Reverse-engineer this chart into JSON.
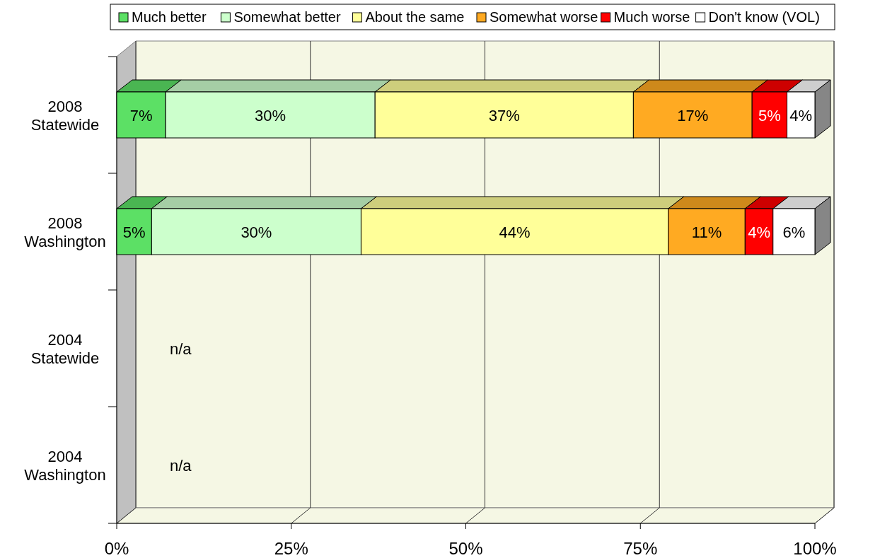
{
  "chart_data": {
    "type": "bar",
    "orientation": "horizontal",
    "stacked": true,
    "categories": [
      "2008 Statewide",
      "2008 Washington",
      "2004 Statewide",
      "2004 Washington"
    ],
    "series": [
      {
        "name": "Much better",
        "color": "#5ce065",
        "values": [
          7,
          5,
          null,
          null
        ]
      },
      {
        "name": "Somewhat better",
        "color": "#ccffcc",
        "values": [
          30,
          30,
          null,
          null
        ]
      },
      {
        "name": "About the same",
        "color": "#ffff99",
        "values": [
          37,
          44,
          null,
          null
        ]
      },
      {
        "name": "Somewhat worse",
        "color": "#ffaa22",
        "values": [
          17,
          11,
          null,
          null
        ]
      },
      {
        "name": "Much worse",
        "color": "#ff0000",
        "values": [
          5,
          4,
          null,
          null
        ]
      },
      {
        "name": "Don't know (VOL)",
        "color": "#ffffff",
        "values": [
          4,
          6,
          null,
          null
        ]
      }
    ],
    "xlim": [
      0,
      100
    ],
    "xticks": [
      {
        "value": 0,
        "label": "0%"
      },
      {
        "value": 25,
        "label": "25%"
      },
      {
        "value": 50,
        "label": "50%"
      },
      {
        "value": 75,
        "label": "75%"
      },
      {
        "value": 100,
        "label": "100%"
      }
    ],
    "value_labels": [
      [
        "7%",
        "5%",
        null,
        null
      ],
      [
        "30%",
        "30%",
        null,
        null
      ],
      [
        "37%",
        "44%",
        null,
        null
      ],
      [
        "17%",
        "11%",
        null,
        null
      ],
      [
        "5%",
        "4%",
        null,
        null
      ],
      [
        "4%",
        "6%",
        null,
        null
      ]
    ],
    "annotations": [
      "n/a",
      "n/a"
    ],
    "grid": "x",
    "legend": "top"
  }
}
